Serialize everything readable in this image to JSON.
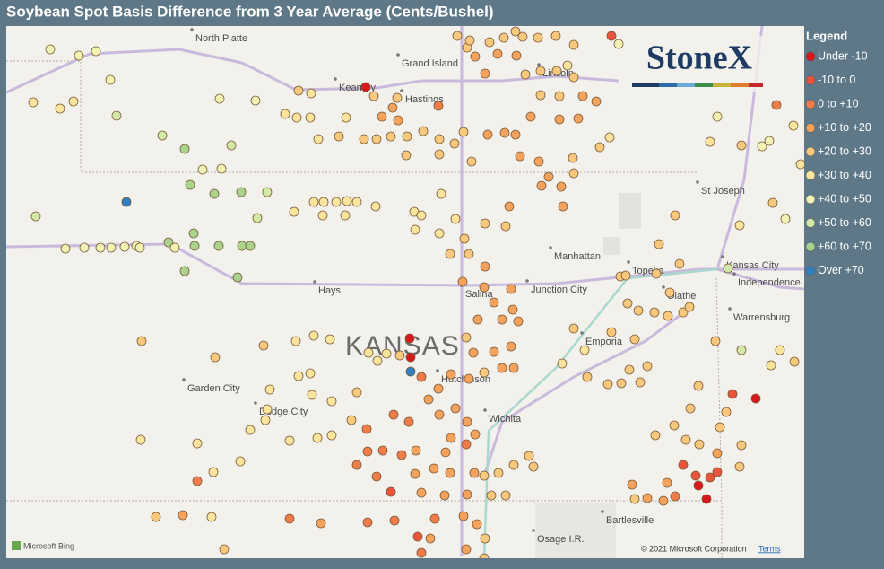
{
  "title": "Soybean Spot Basis Difference from 3 Year Average (Cents/Bushel)",
  "legend": {
    "title": "Legend",
    "items": [
      {
        "label": "Under -10",
        "color": "#d7191c"
      },
      {
        "label": "-10 to 0",
        "color": "#e9553b"
      },
      {
        "label": "0 to +10",
        "color": "#f07c4a"
      },
      {
        "label": "+10 to +20",
        "color": "#f5a35c"
      },
      {
        "label": "+20 to +30",
        "color": "#f8c87c"
      },
      {
        "label": "+30 to +40",
        "color": "#fbe49b"
      },
      {
        "label": "+40 to +50",
        "color": "#f1f3b3"
      },
      {
        "label": "+50 to +60",
        "color": "#d3e8a4"
      },
      {
        "label": "+60 to +70",
        "color": "#a9d48e"
      },
      {
        "label": "Over +70",
        "color": "#2f7fc1"
      }
    ]
  },
  "map_labels": [
    "North Platte",
    "Grand Island",
    "Kearney",
    "Hastings",
    "Lincoln",
    "St Joseph",
    "Manhattan",
    "Topeka",
    "Kansas City",
    "Independence",
    "Olathe",
    "Warrensburg",
    "Hays",
    "Salina",
    "Junction City",
    "Emporia",
    "Garden City",
    "Dodge City",
    "Hutchinson",
    "Wichita",
    "Bartlesville",
    "Osage I.R."
  ],
  "state_label": "KANSAS",
  "logo": "StoneX",
  "bing": "Microsoft Bing",
  "copyright": "© 2021 Microsoft Corporation",
  "terms": "Terms"
}
